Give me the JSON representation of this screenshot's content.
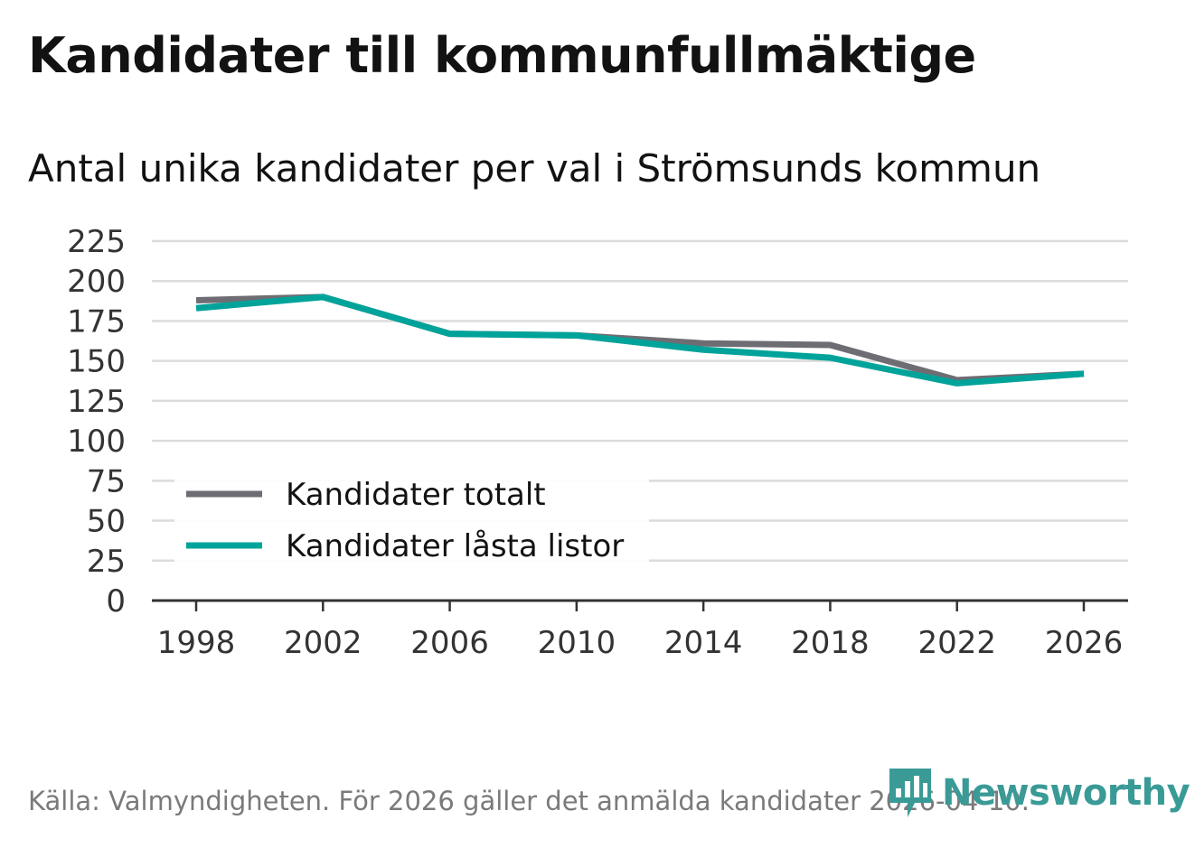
{
  "title": "Kandidater till kommunfullmäktige",
  "subtitle": "Antal unika kandidater per val i Strömsunds kommun",
  "source": "Källa: Valmyndigheten. För 2026 gäller det anmälda kandidater 2026-04-10.",
  "brand": "Newsworthy",
  "colors": {
    "series_total": "#6e6d73",
    "series_locked": "#00a39a",
    "grid": "#dcdcdc",
    "axis": "#333333",
    "brand": "#3a9a96"
  },
  "chart_data": {
    "type": "line",
    "title": "Kandidater till kommunfullmäktige",
    "subtitle": "Antal unika kandidater per val i Strömsunds kommun",
    "xlabel": "",
    "ylabel": "",
    "x": [
      1998,
      2002,
      2006,
      2010,
      2014,
      2018,
      2022,
      2026
    ],
    "x_ticks": [
      "1998",
      "2002",
      "2006",
      "2010",
      "2014",
      "2018",
      "2022",
      "2026"
    ],
    "ylim": [
      0,
      225
    ],
    "y_ticks": [
      "0",
      "25",
      "50",
      "75",
      "100",
      "125",
      "150",
      "175",
      "200",
      "225"
    ],
    "grid": true,
    "legend_position": "lower-left",
    "series": [
      {
        "name": "Kandidater totalt",
        "values": [
          188,
          190,
          167,
          166,
          161,
          160,
          138,
          142
        ]
      },
      {
        "name": "Kandidater låsta listor",
        "values": [
          183,
          190,
          167,
          166,
          157,
          152,
          136,
          142
        ]
      }
    ]
  }
}
